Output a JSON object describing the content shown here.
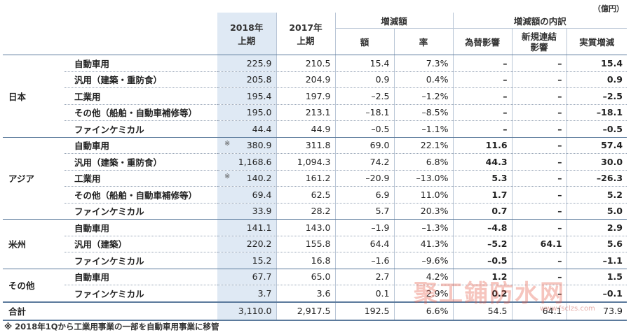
{
  "unit_label": "（億円）",
  "headers": {
    "col_2018": "2018年\n上期",
    "col_2017": "2017年\n上期",
    "change_group": "増減額",
    "change_amount": "額",
    "change_rate": "率",
    "breakdown_group": "増減額の内訳",
    "fx": "為替影響",
    "new_consol": "新規連結\n影響",
    "real": "実質増減"
  },
  "rows": [
    {
      "region": "日本",
      "item": "自動車用",
      "v2018": "225.9",
      "v2017": "210.5",
      "amt": "15.4",
      "rate": "7.3%",
      "fx": "–",
      "nc": "–",
      "real": "15.4",
      "star": ""
    },
    {
      "region": "",
      "item": "汎用（建築・重防食）",
      "v2018": "205.8",
      "v2017": "204.9",
      "amt": "0.9",
      "rate": "0.4%",
      "fx": "–",
      "nc": "–",
      "real": "0.9",
      "star": ""
    },
    {
      "region": "",
      "item": "工業用",
      "v2018": "195.4",
      "v2017": "197.9",
      "amt": "–2.5",
      "rate": "–1.2%",
      "fx": "–",
      "nc": "–",
      "real": "–2.5",
      "star": ""
    },
    {
      "region": "",
      "item": "その他（船舶・自動車補修等）",
      "v2018": "195.0",
      "v2017": "213.1",
      "amt": "–18.1",
      "rate": "–8.5%",
      "fx": "–",
      "nc": "–",
      "real": "–18.1",
      "star": ""
    },
    {
      "region": "",
      "item": "ファインケミカル",
      "v2018": "44.4",
      "v2017": "44.9",
      "amt": "–0.5",
      "rate": "–1.1%",
      "fx": "–",
      "nc": "–",
      "real": "–0.5",
      "star": ""
    },
    {
      "region": "アジア",
      "item": "自動車用",
      "v2018": "380.9",
      "v2017": "311.8",
      "amt": "69.0",
      "rate": "22.1%",
      "fx": "11.6",
      "nc": "–",
      "real": "57.4",
      "star": "※"
    },
    {
      "region": "",
      "item": "汎用（建築・重防食）",
      "v2018": "1,168.6",
      "v2017": "1,094.3",
      "amt": "74.2",
      "rate": "6.8%",
      "fx": "44.3",
      "nc": "–",
      "real": "30.0",
      "star": ""
    },
    {
      "region": "",
      "item": "工業用",
      "v2018": "140.2",
      "v2017": "161.2",
      "amt": "–20.9",
      "rate": "–13.0%",
      "fx": "5.3",
      "nc": "–",
      "real": "–26.3",
      "star": "※"
    },
    {
      "region": "",
      "item": "その他（船舶・自動車補修等）",
      "v2018": "69.4",
      "v2017": "62.5",
      "amt": "6.9",
      "rate": "11.0%",
      "fx": "1.7",
      "nc": "–",
      "real": "5.2",
      "star": ""
    },
    {
      "region": "",
      "item": "ファインケミカル",
      "v2018": "33.9",
      "v2017": "28.2",
      "amt": "5.7",
      "rate": "20.3%",
      "fx": "0.7",
      "nc": "–",
      "real": "5.0",
      "star": ""
    },
    {
      "region": "米州",
      "item": "自動車用",
      "v2018": "141.1",
      "v2017": "143.0",
      "amt": "–1.9",
      "rate": "–1.3%",
      "fx": "–4.8",
      "nc": "–",
      "real": "2.9",
      "star": ""
    },
    {
      "region": "",
      "item": "汎用（建築）",
      "v2018": "220.2",
      "v2017": "155.8",
      "amt": "64.4",
      "rate": "41.3%",
      "fx": "–5.2",
      "nc": "64.1",
      "real": "5.6",
      "star": ""
    },
    {
      "region": "",
      "item": "ファインケミカル",
      "v2018": "15.2",
      "v2017": "16.8",
      "amt": "–1.6",
      "rate": "–9.6%",
      "fx": "–0.5",
      "nc": "–",
      "real": "–1.1",
      "star": ""
    },
    {
      "region": "その他",
      "item": "自動車用",
      "v2018": "67.7",
      "v2017": "65.0",
      "amt": "2.7",
      "rate": "4.2%",
      "fx": "1.2",
      "nc": "–",
      "real": "1.5",
      "star": ""
    },
    {
      "region": "",
      "item": "ファインケミカル",
      "v2018": "3.7",
      "v2017": "3.6",
      "amt": "0.1",
      "rate": "2.9%",
      "fx": "0.2",
      "nc": "–",
      "real": "–0.1",
      "star": ""
    }
  ],
  "total": {
    "label": "合計",
    "v2018": "3,110.0",
    "v2017": "2,917.5",
    "amt": "192.5",
    "rate": "6.6%",
    "fx": "54.5",
    "nc": "64.1",
    "real": "73.9"
  },
  "footnote": "※ 2018年1Qから工業用事業の一部を自動車用事業に移管",
  "watermark": "聚工鋪防水网",
  "watermark_url": "www.fsclzs.com"
}
